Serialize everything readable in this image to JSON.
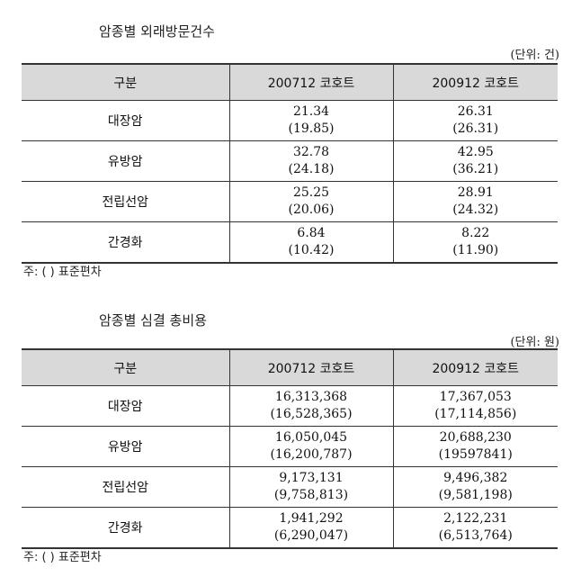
{
  "visits": {
    "title": "암종별 외래방문건수",
    "unit": "(단위: 건)",
    "headers": [
      "구분",
      "200712 코호트",
      "200912 코호트"
    ],
    "rows": [
      {
        "label": "대장암",
        "c2007": "21.34",
        "c2007_sd": "(19.85)",
        "c2009": "26.31",
        "c2009_sd": "(26.31)"
      },
      {
        "label": "유방암",
        "c2007": "32.78",
        "c2007_sd": "(24.18)",
        "c2009": "42.95",
        "c2009_sd": "(36.21)"
      },
      {
        "label": "전립선암",
        "c2007": "25.25",
        "c2007_sd": "(20.06)",
        "c2009": "28.91",
        "c2009_sd": "(24.32)"
      },
      {
        "label": "간경화",
        "c2007": "6.84",
        "c2007_sd": "(10.42)",
        "c2009": "8.22",
        "c2009_sd": "(11.90)"
      }
    ],
    "note": "주: ( ) 표준편차"
  },
  "costs": {
    "title": "암종별 심결 총비용",
    "unit": "(단위: 원)",
    "headers": [
      "구분",
      "200712 코호트",
      "200912 코호트"
    ],
    "rows": [
      {
        "label": "대장암",
        "c2007": "16,313,368",
        "c2007_sd": "(16,528,365)",
        "c2009": "17,367,053",
        "c2009_sd": "(17,114,856)"
      },
      {
        "label": "유방암",
        "c2007": "16,050,045",
        "c2007_sd": "(16,200,787)",
        "c2009": "20,688,230",
        "c2009_sd": "(19597841)"
      },
      {
        "label": "전립선암",
        "c2007": "9,173,131",
        "c2007_sd": "(9,758,813)",
        "c2009": "9,496,382",
        "c2009_sd": "(9,581,198)"
      },
      {
        "label": "간경화",
        "c2007": "1,941,292",
        "c2007_sd": "(6,290,047)",
        "c2009": "2,122,231",
        "c2009_sd": "(6,513,764)"
      }
    ],
    "note": "주: ( ) 표준편차"
  }
}
